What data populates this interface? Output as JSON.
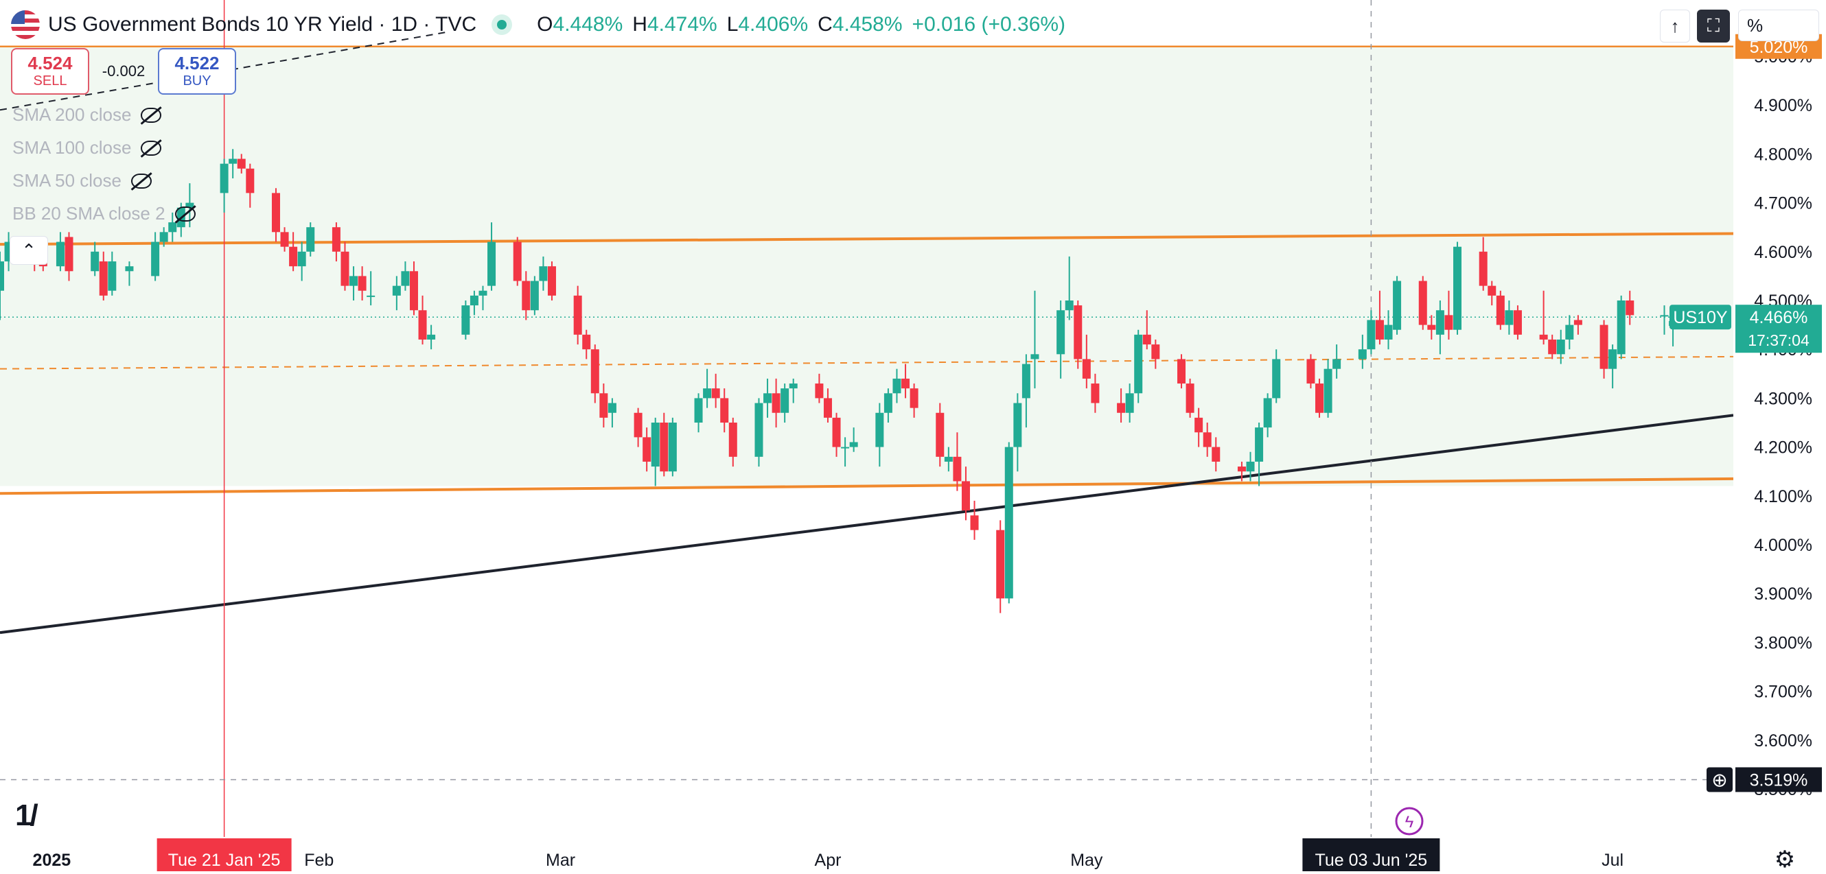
{
  "header": {
    "symbol_title": "US Government Bonds 10 YR Yield · 1D · TVC",
    "open_label": "O",
    "open_value": "4.448%",
    "high_label": "H",
    "high_value": "4.474%",
    "low_label": "L",
    "low_value": "4.406%",
    "close_label": "C",
    "close_value": "4.458%",
    "change": "+0.016 (+0.36%)"
  },
  "trade": {
    "sell_price": "4.524",
    "sell_label": "SELL",
    "spread": "-0.002",
    "buy_price": "4.522",
    "buy_label": "BUY"
  },
  "indicators": [
    {
      "label": "SMA 200 close"
    },
    {
      "label": "SMA 100 close"
    },
    {
      "label": "SMA 50 close"
    },
    {
      "label": "BB 20 SMA close 2"
    }
  ],
  "toolbar": {
    "scale_label": "%"
  },
  "colors": {
    "up": "#22ab94",
    "down": "#f23645",
    "channel": "#f0892d",
    "trend": "#1e222d",
    "zone_fill": "#f1f8f1",
    "crosshair_badge": "#131722"
  },
  "chart_data": {
    "type": "candlestick",
    "title": "US Government Bonds 10 YR Yield · 1D · TVC",
    "ylim": [
      3.5,
      5.03
    ],
    "y_ticks": [
      "5.000%",
      "4.900%",
      "4.800%",
      "4.700%",
      "4.600%",
      "4.500%",
      "4.400%",
      "4.300%",
      "4.200%",
      "4.100%",
      "4.000%",
      "3.900%",
      "3.800%",
      "3.700%",
      "3.600%",
      "3.500%"
    ],
    "x_labels": [
      "2025",
      "Feb",
      "Mar",
      "Apr",
      "May",
      "Jul"
    ],
    "x_start": "2024-12-26",
    "x_end": "2025-07-15",
    "grid": false,
    "price_labels": {
      "top_line": "5.020%",
      "symbol": "US10Y",
      "last_price": "4.466%",
      "countdown": "17:37:04",
      "cursor_price": "3.519%"
    },
    "crosshair": {
      "date_label": "Tue 03 Jun '25",
      "date": "2025-06-03",
      "price": 3.519
    },
    "marker": {
      "date_label": "Tue 21 Jan '25",
      "date": "2025-01-21"
    },
    "levels": [
      {
        "name": "top",
        "value": 5.02,
        "style": "solid"
      },
      {
        "name": "last",
        "value": 4.466,
        "style": "dotted"
      }
    ],
    "channel_lines": [
      {
        "name": "resistance",
        "from": [
          "2024-12-26",
          4.615
        ],
        "to": [
          "2025-07-15",
          4.637
        ]
      },
      {
        "name": "support",
        "from": [
          "2024-12-26",
          4.105
        ],
        "to": [
          "2025-07-15",
          4.135
        ]
      },
      {
        "name": "dashed-mid",
        "from": [
          "2024-12-26",
          4.36
        ],
        "to": [
          "2025-07-15",
          4.385
        ]
      }
    ],
    "trend_lines": [
      {
        "name": "rising-trendline",
        "from": [
          "2024-12-26",
          3.82
        ],
        "to": [
          "2025-07-15",
          4.265
        ]
      },
      {
        "name": "dashed-upper",
        "from": [
          "2024-12-26",
          4.89
        ],
        "to": [
          "2025-02-16",
          5.05
        ]
      }
    ],
    "candles": [
      {
        "date": "2024-12-26",
        "o": 4.52,
        "h": 4.6,
        "l": 4.46,
        "c": 4.58
      },
      {
        "date": "2024-12-27",
        "o": 4.58,
        "h": 4.64,
        "l": 4.56,
        "c": 4.62
      },
      {
        "date": "2024-12-30",
        "o": 4.6,
        "h": 4.61,
        "l": 4.56,
        "c": 4.58
      },
      {
        "date": "2024-12-31",
        "o": 4.58,
        "h": 4.62,
        "l": 4.56,
        "c": 4.57
      },
      {
        "date": "2025-01-02",
        "o": 4.57,
        "h": 4.64,
        "l": 4.56,
        "c": 4.62
      },
      {
        "date": "2025-01-03",
        "o": 4.63,
        "h": 4.64,
        "l": 4.54,
        "c": 4.56
      },
      {
        "date": "2025-01-06",
        "o": 4.56,
        "h": 4.62,
        "l": 4.55,
        "c": 4.6
      },
      {
        "date": "2025-01-07",
        "o": 4.58,
        "h": 4.6,
        "l": 4.5,
        "c": 4.51
      },
      {
        "date": "2025-01-08",
        "o": 4.52,
        "h": 4.6,
        "l": 4.51,
        "c": 4.58
      },
      {
        "date": "2025-01-10",
        "o": 4.56,
        "h": 4.58,
        "l": 4.53,
        "c": 4.57
      },
      {
        "date": "2025-01-13",
        "o": 4.55,
        "h": 4.64,
        "l": 4.54,
        "c": 4.62
      },
      {
        "date": "2025-01-14",
        "o": 4.62,
        "h": 4.65,
        "l": 4.61,
        "c": 4.64
      },
      {
        "date": "2025-01-15",
        "o": 4.64,
        "h": 4.68,
        "l": 4.62,
        "c": 4.66
      },
      {
        "date": "2025-01-16",
        "o": 4.65,
        "h": 4.7,
        "l": 4.63,
        "c": 4.69
      },
      {
        "date": "2025-01-17",
        "o": 4.69,
        "h": 4.74,
        "l": 4.65,
        "c": 4.7
      },
      {
        "date": "2025-01-21",
        "o": 4.72,
        "h": 4.79,
        "l": 4.68,
        "c": 4.78
      },
      {
        "date": "2025-01-22",
        "o": 4.78,
        "h": 4.81,
        "l": 4.75,
        "c": 4.79
      },
      {
        "date": "2025-01-23",
        "o": 4.79,
        "h": 4.8,
        "l": 4.76,
        "c": 4.77
      },
      {
        "date": "2025-01-24",
        "o": 4.77,
        "h": 4.78,
        "l": 4.69,
        "c": 4.72
      },
      {
        "date": "2025-01-27",
        "o": 4.72,
        "h": 4.73,
        "l": 4.62,
        "c": 4.64
      },
      {
        "date": "2025-01-28",
        "o": 4.64,
        "h": 4.65,
        "l": 4.6,
        "c": 4.61
      },
      {
        "date": "2025-01-29",
        "o": 4.61,
        "h": 4.64,
        "l": 4.56,
        "c": 4.57
      },
      {
        "date": "2025-01-30",
        "o": 4.57,
        "h": 4.62,
        "l": 4.54,
        "c": 4.6
      },
      {
        "date": "2025-01-31",
        "o": 4.6,
        "h": 4.66,
        "l": 4.59,
        "c": 4.65
      },
      {
        "date": "2025-02-03",
        "o": 4.65,
        "h": 4.66,
        "l": 4.58,
        "c": 4.6
      },
      {
        "date": "2025-02-04",
        "o": 4.6,
        "h": 4.62,
        "l": 4.52,
        "c": 4.53
      },
      {
        "date": "2025-02-05",
        "o": 4.53,
        "h": 4.57,
        "l": 4.5,
        "c": 4.55
      },
      {
        "date": "2025-02-06",
        "o": 4.55,
        "h": 4.57,
        "l": 4.5,
        "c": 4.52
      },
      {
        "date": "2025-02-07",
        "o": 4.51,
        "h": 4.56,
        "l": 4.49,
        "c": 4.51
      },
      {
        "date": "2025-02-10",
        "o": 4.51,
        "h": 4.55,
        "l": 4.48,
        "c": 4.53
      },
      {
        "date": "2025-02-11",
        "o": 4.53,
        "h": 4.58,
        "l": 4.52,
        "c": 4.56
      },
      {
        "date": "2025-02-12",
        "o": 4.56,
        "h": 4.58,
        "l": 4.47,
        "c": 4.48
      },
      {
        "date": "2025-02-13",
        "o": 4.48,
        "h": 4.51,
        "l": 4.41,
        "c": 4.42
      },
      {
        "date": "2025-02-14",
        "o": 4.42,
        "h": 4.45,
        "l": 4.4,
        "c": 4.43
      },
      {
        "date": "2025-02-18",
        "o": 4.43,
        "h": 4.5,
        "l": 4.42,
        "c": 4.49
      },
      {
        "date": "2025-02-19",
        "o": 4.49,
        "h": 4.52,
        "l": 4.47,
        "c": 4.51
      },
      {
        "date": "2025-02-20",
        "o": 4.51,
        "h": 4.53,
        "l": 4.48,
        "c": 4.52
      },
      {
        "date": "2025-02-21",
        "o": 4.53,
        "h": 4.66,
        "l": 4.52,
        "c": 4.62
      },
      {
        "date": "2025-02-24",
        "o": 4.62,
        "h": 4.63,
        "l": 4.53,
        "c": 4.54
      },
      {
        "date": "2025-02-25",
        "o": 4.54,
        "h": 4.56,
        "l": 4.46,
        "c": 4.48
      },
      {
        "date": "2025-02-26",
        "o": 4.48,
        "h": 4.55,
        "l": 4.47,
        "c": 4.54
      },
      {
        "date": "2025-02-27",
        "o": 4.54,
        "h": 4.59,
        "l": 4.52,
        "c": 4.57
      },
      {
        "date": "2025-02-28",
        "o": 4.57,
        "h": 4.58,
        "l": 4.5,
        "c": 4.51
      },
      {
        "date": "2025-03-03",
        "o": 4.51,
        "h": 4.53,
        "l": 4.41,
        "c": 4.43
      },
      {
        "date": "2025-03-04",
        "o": 4.43,
        "h": 4.44,
        "l": 4.38,
        "c": 4.4
      },
      {
        "date": "2025-03-05",
        "o": 4.4,
        "h": 4.41,
        "l": 4.29,
        "c": 4.31
      },
      {
        "date": "2025-03-06",
        "o": 4.31,
        "h": 4.33,
        "l": 4.24,
        "c": 4.26
      },
      {
        "date": "2025-03-07",
        "o": 4.27,
        "h": 4.3,
        "l": 4.24,
        "c": 4.29
      },
      {
        "date": "2025-03-10",
        "o": 4.27,
        "h": 4.28,
        "l": 4.2,
        "c": 4.22
      },
      {
        "date": "2025-03-11",
        "o": 4.22,
        "h": 4.24,
        "l": 4.15,
        "c": 4.17
      },
      {
        "date": "2025-03-12",
        "o": 4.16,
        "h": 4.26,
        "l": 4.12,
        "c": 4.25
      },
      {
        "date": "2025-03-13",
        "o": 4.25,
        "h": 4.27,
        "l": 4.14,
        "c": 4.15
      },
      {
        "date": "2025-03-14",
        "o": 4.15,
        "h": 4.26,
        "l": 4.14,
        "c": 4.25
      },
      {
        "date": "2025-03-17",
        "o": 4.25,
        "h": 4.31,
        "l": 4.23,
        "c": 4.3
      },
      {
        "date": "2025-03-18",
        "o": 4.3,
        "h": 4.36,
        "l": 4.28,
        "c": 4.32
      },
      {
        "date": "2025-03-19",
        "o": 4.32,
        "h": 4.35,
        "l": 4.28,
        "c": 4.3
      },
      {
        "date": "2025-03-20",
        "o": 4.3,
        "h": 4.32,
        "l": 4.23,
        "c": 4.25
      },
      {
        "date": "2025-03-21",
        "o": 4.25,
        "h": 4.26,
        "l": 4.16,
        "c": 4.18
      },
      {
        "date": "2025-03-24",
        "o": 4.18,
        "h": 4.3,
        "l": 4.16,
        "c": 4.29
      },
      {
        "date": "2025-03-25",
        "o": 4.29,
        "h": 4.34,
        "l": 4.26,
        "c": 4.31
      },
      {
        "date": "2025-03-26",
        "o": 4.31,
        "h": 4.34,
        "l": 4.24,
        "c": 4.27
      },
      {
        "date": "2025-03-27",
        "o": 4.27,
        "h": 4.33,
        "l": 4.25,
        "c": 4.32
      },
      {
        "date": "2025-03-28",
        "o": 4.32,
        "h": 4.34,
        "l": 4.29,
        "c": 4.33
      },
      {
        "date": "2025-03-31",
        "o": 4.33,
        "h": 4.35,
        "l": 4.29,
        "c": 4.3
      },
      {
        "date": "2025-04-01",
        "o": 4.3,
        "h": 4.32,
        "l": 4.25,
        "c": 4.26
      },
      {
        "date": "2025-04-02",
        "o": 4.26,
        "h": 4.27,
        "l": 4.18,
        "c": 4.2
      },
      {
        "date": "2025-04-03",
        "o": 4.2,
        "h": 4.22,
        "l": 4.16,
        "c": 4.2
      },
      {
        "date": "2025-04-04",
        "o": 4.2,
        "h": 4.24,
        "l": 4.19,
        "c": 4.21
      },
      {
        "date": "2025-04-07",
        "o": 4.2,
        "h": 4.29,
        "l": 4.16,
        "c": 4.27
      },
      {
        "date": "2025-04-08",
        "o": 4.27,
        "h": 4.32,
        "l": 4.25,
        "c": 4.31
      },
      {
        "date": "2025-04-09",
        "o": 4.31,
        "h": 4.36,
        "l": 4.29,
        "c": 4.34
      },
      {
        "date": "2025-04-10",
        "o": 4.34,
        "h": 4.37,
        "l": 4.3,
        "c": 4.32
      },
      {
        "date": "2025-04-11",
        "o": 4.32,
        "h": 4.33,
        "l": 4.26,
        "c": 4.28
      },
      {
        "date": "2025-04-14",
        "o": 4.27,
        "h": 4.29,
        "l": 4.16,
        "c": 4.18
      },
      {
        "date": "2025-04-15",
        "o": 4.17,
        "h": 4.2,
        "l": 4.15,
        "c": 4.18
      },
      {
        "date": "2025-04-16",
        "o": 4.18,
        "h": 4.23,
        "l": 4.11,
        "c": 4.13
      },
      {
        "date": "2025-04-17",
        "o": 4.13,
        "h": 4.16,
        "l": 4.05,
        "c": 4.07
      },
      {
        "date": "2025-04-18",
        "o": 4.06,
        "h": 4.09,
        "l": 4.01,
        "c": 4.03
      },
      {
        "date": "2025-04-21",
        "o": 4.03,
        "h": 4.05,
        "l": 3.86,
        "c": 3.89
      },
      {
        "date": "2025-04-22",
        "o": 3.89,
        "h": 4.21,
        "l": 3.88,
        "c": 4.2
      },
      {
        "date": "2025-04-23",
        "o": 4.2,
        "h": 4.31,
        "l": 4.15,
        "c": 4.29
      },
      {
        "date": "2025-04-24",
        "o": 4.3,
        "h": 4.39,
        "l": 4.24,
        "c": 4.37
      },
      {
        "date": "2025-04-25",
        "o": 4.38,
        "h": 4.52,
        "l": 4.32,
        "c": 4.39
      },
      {
        "date": "2025-04-28",
        "o": 4.39,
        "h": 4.5,
        "l": 4.34,
        "c": 4.48
      },
      {
        "date": "2025-04-29",
        "o": 4.48,
        "h": 4.59,
        "l": 4.46,
        "c": 4.5
      },
      {
        "date": "2025-04-30",
        "o": 4.49,
        "h": 4.5,
        "l": 4.36,
        "c": 4.38
      },
      {
        "date": "2025-05-01",
        "o": 4.38,
        "h": 4.43,
        "l": 4.32,
        "c": 4.34
      },
      {
        "date": "2025-05-02",
        "o": 4.33,
        "h": 4.35,
        "l": 4.27,
        "c": 4.29
      },
      {
        "date": "2025-05-05",
        "o": 4.29,
        "h": 4.32,
        "l": 4.25,
        "c": 4.27
      },
      {
        "date": "2025-05-06",
        "o": 4.27,
        "h": 4.33,
        "l": 4.25,
        "c": 4.31
      },
      {
        "date": "2025-05-07",
        "o": 4.31,
        "h": 4.44,
        "l": 4.29,
        "c": 4.43
      },
      {
        "date": "2025-05-08",
        "o": 4.43,
        "h": 4.48,
        "l": 4.4,
        "c": 4.41
      },
      {
        "date": "2025-05-09",
        "o": 4.41,
        "h": 4.42,
        "l": 4.36,
        "c": 4.38
      },
      {
        "date": "2025-05-12",
        "o": 4.38,
        "h": 4.39,
        "l": 4.32,
        "c": 4.33
      },
      {
        "date": "2025-05-13",
        "o": 4.33,
        "h": 4.34,
        "l": 4.26,
        "c": 4.27
      },
      {
        "date": "2025-05-14",
        "o": 4.26,
        "h": 4.28,
        "l": 4.2,
        "c": 4.23
      },
      {
        "date": "2025-05-15",
        "o": 4.23,
        "h": 4.25,
        "l": 4.18,
        "c": 4.2
      },
      {
        "date": "2025-05-16",
        "o": 4.2,
        "h": 4.22,
        "l": 4.15,
        "c": 4.17
      },
      {
        "date": "2025-05-19",
        "o": 4.16,
        "h": 4.17,
        "l": 4.13,
        "c": 4.15
      },
      {
        "date": "2025-05-20",
        "o": 4.15,
        "h": 4.19,
        "l": 4.13,
        "c": 4.17
      },
      {
        "date": "2025-05-21",
        "o": 4.17,
        "h": 4.25,
        "l": 4.12,
        "c": 4.24
      },
      {
        "date": "2025-05-22",
        "o": 4.24,
        "h": 4.31,
        "l": 4.22,
        "c": 4.3
      },
      {
        "date": "2025-05-23",
        "o": 4.3,
        "h": 4.4,
        "l": 4.29,
        "c": 4.38
      },
      {
        "date": "2025-05-27",
        "o": 4.38,
        "h": 4.39,
        "l": 4.32,
        "c": 4.33
      },
      {
        "date": "2025-05-28",
        "o": 4.33,
        "h": 4.34,
        "l": 4.26,
        "c": 4.27
      },
      {
        "date": "2025-05-29",
        "o": 4.27,
        "h": 4.38,
        "l": 4.26,
        "c": 4.36
      },
      {
        "date": "2025-05-30",
        "o": 4.36,
        "h": 4.41,
        "l": 4.34,
        "c": 4.38
      },
      {
        "date": "2025-06-02",
        "o": 4.38,
        "h": 4.43,
        "l": 4.36,
        "c": 4.4
      },
      {
        "date": "2025-06-03",
        "o": 4.4,
        "h": 4.48,
        "l": 4.39,
        "c": 4.46
      },
      {
        "date": "2025-06-04",
        "o": 4.46,
        "h": 4.52,
        "l": 4.41,
        "c": 4.42
      },
      {
        "date": "2025-06-05",
        "o": 4.42,
        "h": 4.48,
        "l": 4.4,
        "c": 4.45
      },
      {
        "date": "2025-06-06",
        "o": 4.44,
        "h": 4.55,
        "l": 4.43,
        "c": 4.54
      },
      {
        "date": "2025-06-09",
        "o": 4.54,
        "h": 4.55,
        "l": 4.44,
        "c": 4.45
      },
      {
        "date": "2025-06-10",
        "o": 4.45,
        "h": 4.47,
        "l": 4.42,
        "c": 4.44
      },
      {
        "date": "2025-06-11",
        "o": 4.43,
        "h": 4.5,
        "l": 4.39,
        "c": 4.48
      },
      {
        "date": "2025-06-12",
        "o": 4.47,
        "h": 4.52,
        "l": 4.42,
        "c": 4.44
      },
      {
        "date": "2025-06-13",
        "o": 4.44,
        "h": 4.62,
        "l": 4.43,
        "c": 4.61
      },
      {
        "date": "2025-06-16",
        "o": 4.6,
        "h": 4.63,
        "l": 4.52,
        "c": 4.53
      },
      {
        "date": "2025-06-17",
        "o": 4.53,
        "h": 4.54,
        "l": 4.49,
        "c": 4.51
      },
      {
        "date": "2025-06-18",
        "o": 4.51,
        "h": 4.52,
        "l": 4.44,
        "c": 4.45
      },
      {
        "date": "2025-06-19",
        "o": 4.45,
        "h": 4.5,
        "l": 4.43,
        "c": 4.48
      },
      {
        "date": "2025-06-20",
        "o": 4.48,
        "h": 4.49,
        "l": 4.42,
        "c": 4.43
      },
      {
        "date": "2025-06-23",
        "o": 4.43,
        "h": 4.52,
        "l": 4.41,
        "c": 4.42
      },
      {
        "date": "2025-06-24",
        "o": 4.42,
        "h": 4.43,
        "l": 4.38,
        "c": 4.39
      },
      {
        "date": "2025-06-25",
        "o": 4.39,
        "h": 4.44,
        "l": 4.37,
        "c": 4.42
      },
      {
        "date": "2025-06-26",
        "o": 4.42,
        "h": 4.47,
        "l": 4.4,
        "c": 4.45
      },
      {
        "date": "2025-06-27",
        "o": 4.46,
        "h": 4.47,
        "l": 4.43,
        "c": 4.45
      },
      {
        "date": "2025-06-30",
        "o": 4.45,
        "h": 4.46,
        "l": 4.34,
        "c": 4.36
      },
      {
        "date": "2025-07-01",
        "o": 4.36,
        "h": 4.41,
        "l": 4.32,
        "c": 4.4
      },
      {
        "date": "2025-07-02",
        "o": 4.39,
        "h": 4.51,
        "l": 4.38,
        "c": 4.5
      },
      {
        "date": "2025-07-03",
        "o": 4.5,
        "h": 4.52,
        "l": 4.45,
        "c": 4.47
      },
      {
        "date": "2025-07-07",
        "o": 4.47,
        "h": 4.49,
        "l": 4.43,
        "c": 4.47
      },
      {
        "date": "2025-07-08",
        "o": 4.448,
        "h": 4.474,
        "l": 4.406,
        "c": 4.458
      }
    ]
  }
}
